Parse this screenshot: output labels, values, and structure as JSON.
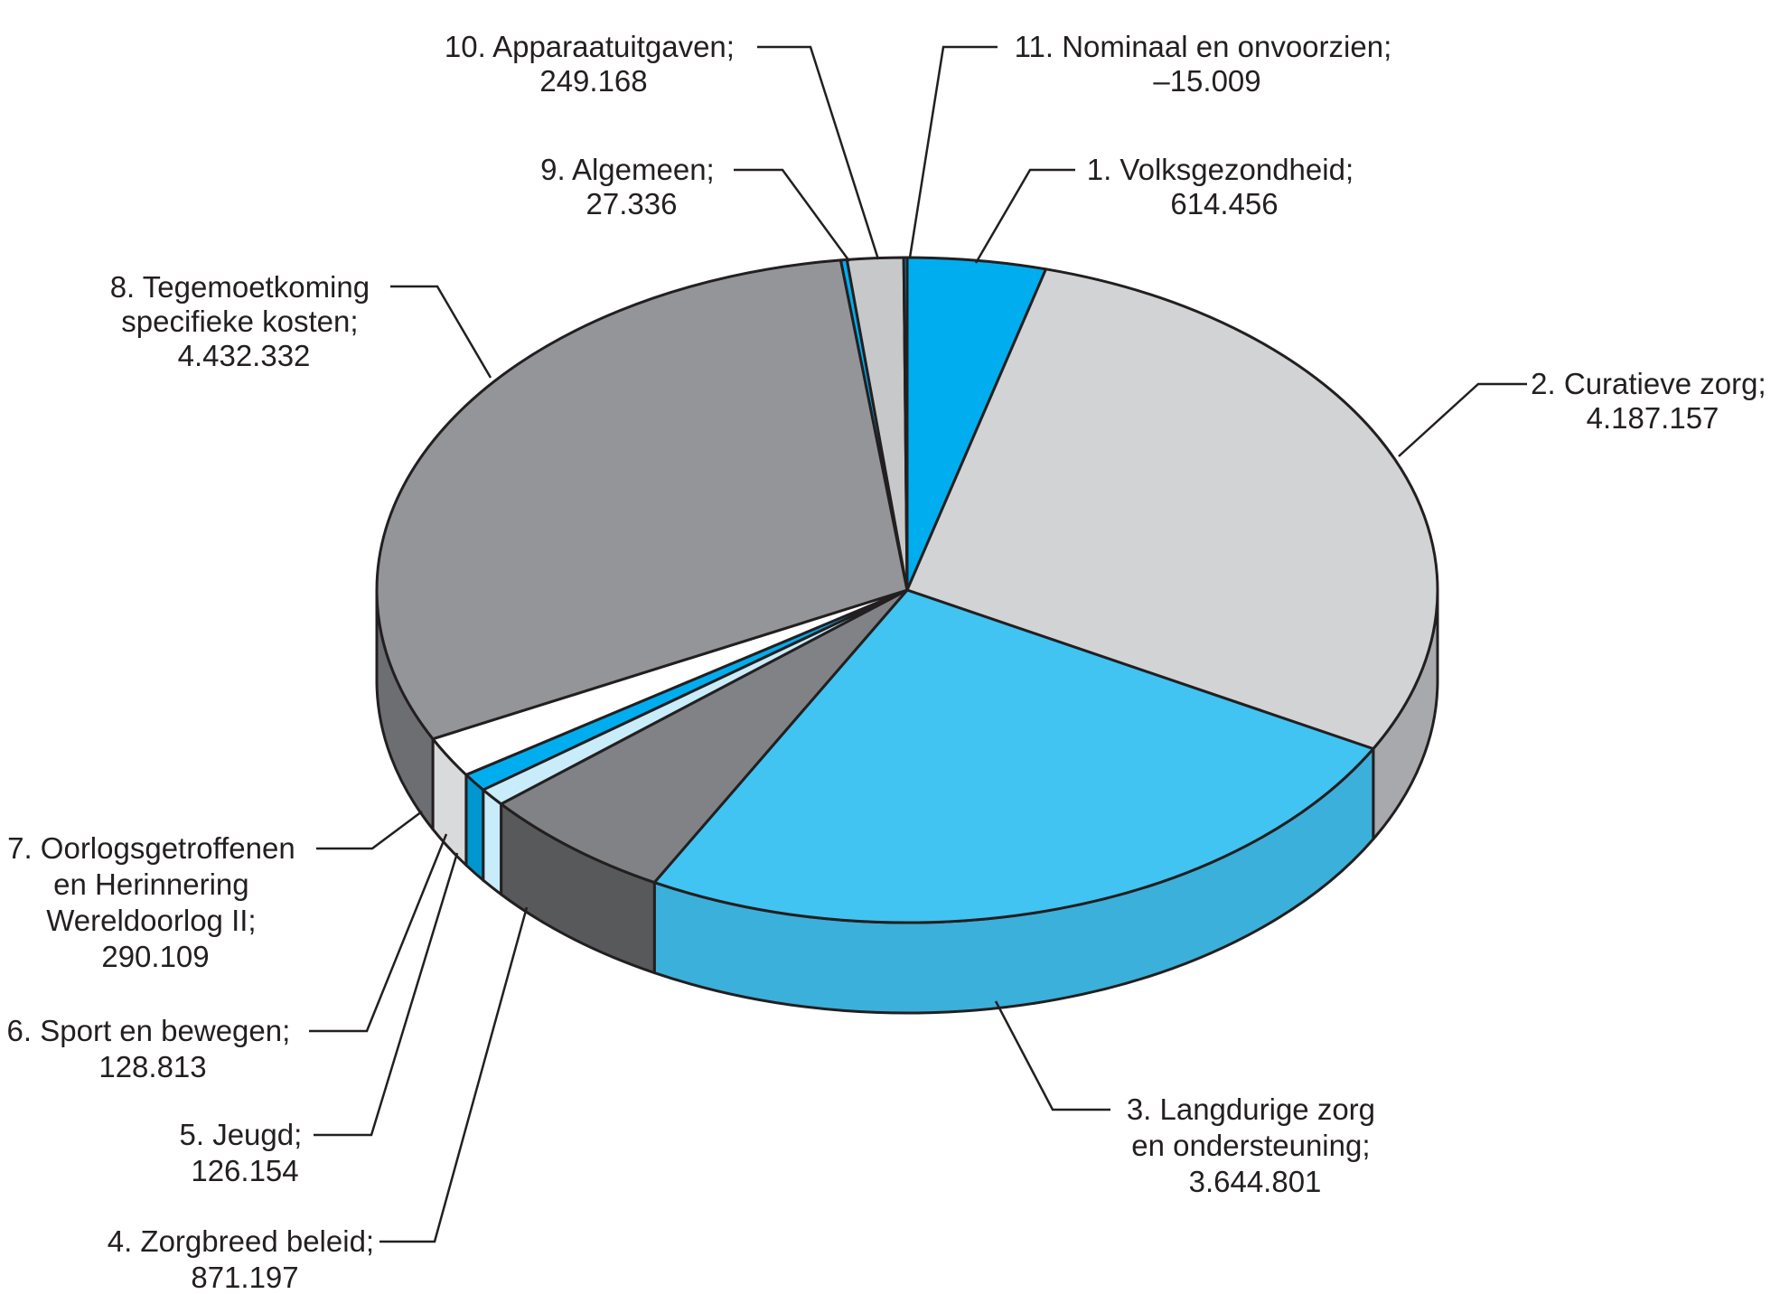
{
  "chart_data": {
    "type": "pie",
    "style": "3d",
    "start": "12 o'clock",
    "direction": "clockwise",
    "slices": [
      {
        "label": "1. Volksgezondheid;",
        "value": 614456,
        "value_text": "614.456",
        "color": "#00aeef",
        "side_color": "#0095cc"
      },
      {
        "label": "2. Curatieve zorg;",
        "value": 4187157,
        "value_text": "4.187.157",
        "color": "#d1d3d4",
        "side_color": "#a7a9ac"
      },
      {
        "label": "3. Langdurige zorg en ondersteuning;",
        "value": 3644801,
        "value_text": "3.644.801",
        "color": "#41c4f1",
        "side_color": "#3bb0da"
      },
      {
        "label": "4. Zorgbreed beleid;",
        "value": 871197,
        "value_text": "871.197",
        "color": "#808285",
        "side_color": "#58595b"
      },
      {
        "label": "5. Jeugd;",
        "value": 126154,
        "value_text": "126.154",
        "color": "#c9ecfa",
        "side_color": "#c9ecfa"
      },
      {
        "label": "6. Sport en bewegen;",
        "value": 128813,
        "value_text": "128.813",
        "color": "#00aeef",
        "side_color": "#0097d0"
      },
      {
        "label": "7. Oorlogsgetroffenen en Herinnering Wereldoorlog II;",
        "value": 290109,
        "value_text": "290.109",
        "color": "#ffffff",
        "side_color": "#d9dadb"
      },
      {
        "label": "8. Tegemoetkoming specifieke kosten;",
        "value": 4432332,
        "value_text": "4.432.332",
        "color": "#939598",
        "side_color": "#6d6e71"
      },
      {
        "label": "9. Algemeen;",
        "value": 27336,
        "value_text": "27.336",
        "color": "#00aeef",
        "side_color": "#0095cc"
      },
      {
        "label": "10. Apparaatuitgaven;",
        "value": 249168,
        "value_text": "249.168",
        "color": "#c7c8ca",
        "side_color": "#a7a9ac"
      },
      {
        "label": "11. Nominaal en onvoorzien;",
        "value": -15009,
        "value_text": "–15.009",
        "color": "#00aeef",
        "side_color": "#0095cc"
      }
    ]
  },
  "labels": [
    {
      "lines": [
        "11. Nominaal en onvoorzien;",
        "–15.009"
      ]
    },
    {
      "lines": [
        "10. Apparaatuitgaven;",
        "249.168"
      ]
    },
    {
      "lines": [
        "9. Algemeen;",
        "27.336"
      ]
    },
    {
      "lines": [
        "1. Volksgezondheid;",
        "614.456"
      ]
    },
    {
      "lines": [
        "8. Tegemoetkoming",
        "specifieke kosten;",
        "4.432.332"
      ]
    },
    {
      "lines": [
        "2. Curatieve zorg;",
        "4.187.157"
      ]
    },
    {
      "lines": [
        "7. Oorlogsgetroffenen",
        "en Herinnering",
        "Wereldoorlog II;",
        "290.109"
      ]
    },
    {
      "lines": [
        "6. Sport en bewegen;",
        "128.813"
      ]
    },
    {
      "lines": [
        "5. Jeugd;",
        "126.154"
      ]
    },
    {
      "lines": [
        "4. Zorgbreed beleid;",
        "871.197"
      ]
    },
    {
      "lines": [
        "3. Langdurige zorg",
        "en ondersteuning;",
        "3.644.801"
      ]
    }
  ]
}
